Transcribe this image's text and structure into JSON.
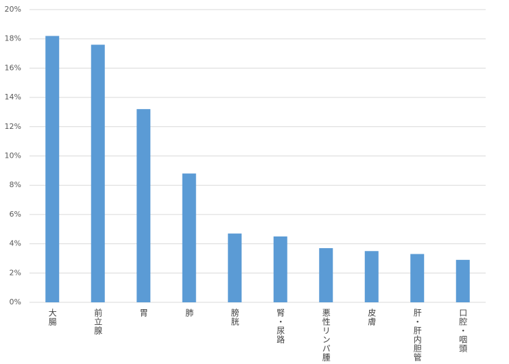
{
  "chart_data": {
    "type": "bar",
    "categories": [
      "大腸",
      "前立腺",
      "胃",
      "肺",
      "膀胱",
      "腎・尿路",
      "悪性リンパ腫",
      "皮膚",
      "肝・肝内胆管",
      "口腔・咽頭"
    ],
    "values": [
      18.2,
      17.6,
      13.2,
      8.8,
      4.7,
      4.5,
      3.7,
      3.5,
      3.3,
      2.9
    ],
    "color": "#5b9bd5",
    "ylim": [
      0,
      20
    ],
    "yticks": [
      {
        "value": 0,
        "label": "0%"
      },
      {
        "value": 2,
        "label": "2%"
      },
      {
        "value": 4,
        "label": "4%"
      },
      {
        "value": 6,
        "label": "6%"
      },
      {
        "value": 8,
        "label": "8%"
      },
      {
        "value": 10,
        "label": "10%"
      },
      {
        "value": 12,
        "label": "12%"
      },
      {
        "value": 14,
        "label": "14%"
      },
      {
        "value": 16,
        "label": "16%"
      },
      {
        "value": 18,
        "label": "18%"
      },
      {
        "value": 20,
        "label": "20%"
      }
    ],
    "grid": true
  }
}
